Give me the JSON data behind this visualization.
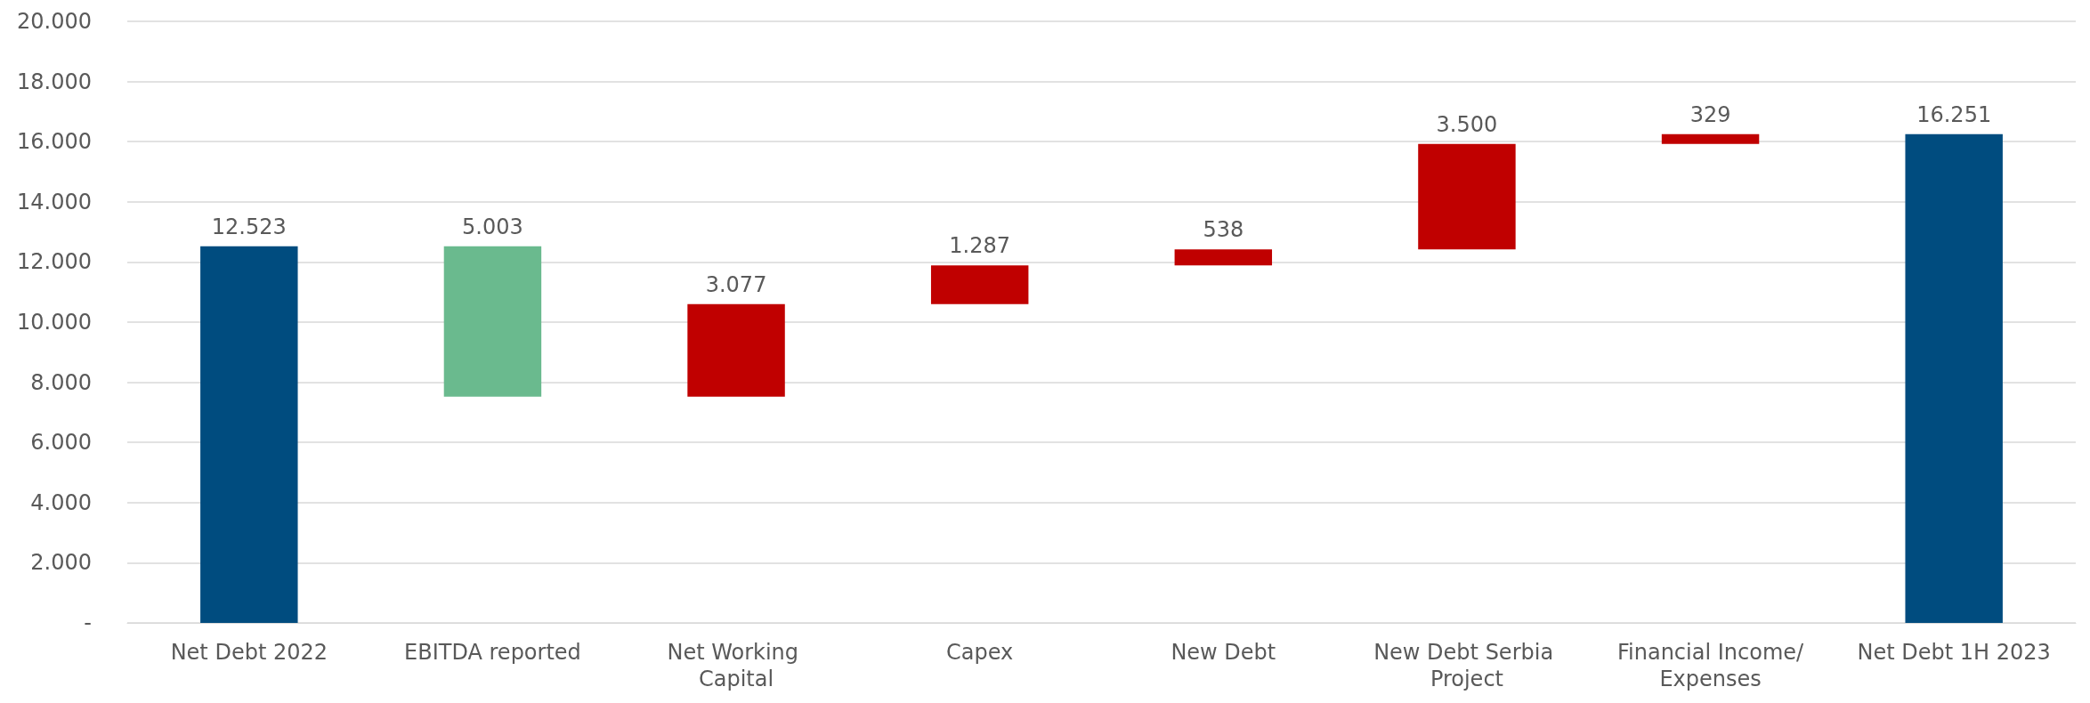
{
  "chart_data": {
    "type": "bar",
    "categories": [
      "Net Debt 2022",
      "EBITDA reported",
      "Net Working Capital",
      "Capex",
      "New Debt",
      "New Debt Serbia Project",
      "Financial Income/Expenses",
      "Net Debt 1H 2023"
    ],
    "values": [
      12523,
      5003,
      3077,
      1287,
      538,
      3500,
      329,
      16251
    ],
    "base": [
      0,
      7520,
      7520,
      10597,
      11884,
      12422,
      15922,
      0
    ],
    "colors": [
      "#004c7f",
      "#6aba8e",
      "#c00000",
      "#c00000",
      "#c00000",
      "#c00000",
      "#c00000",
      "#004c7f"
    ],
    "value_labels": [
      "12.523",
      "5.003",
      "3.077",
      "1.287",
      "538",
      "3.500",
      "329",
      "16.251"
    ],
    "ylim": [
      0,
      20000
    ],
    "yticks": [
      {
        "value": 0,
        "label": "-"
      },
      {
        "value": 2000,
        "label": "2.000"
      },
      {
        "value": 4000,
        "label": "4.000"
      },
      {
        "value": 6000,
        "label": "6.000"
      },
      {
        "value": 8000,
        "label": "8.000"
      },
      {
        "value": 10000,
        "label": "10.000"
      },
      {
        "value": 12000,
        "label": "12.000"
      },
      {
        "value": 14000,
        "label": "14.000"
      },
      {
        "value": 16000,
        "label": "16.000"
      },
      {
        "value": 18000,
        "label": "18.000"
      },
      {
        "value": 20000,
        "label": "20.000"
      }
    ],
    "grid": "y"
  }
}
